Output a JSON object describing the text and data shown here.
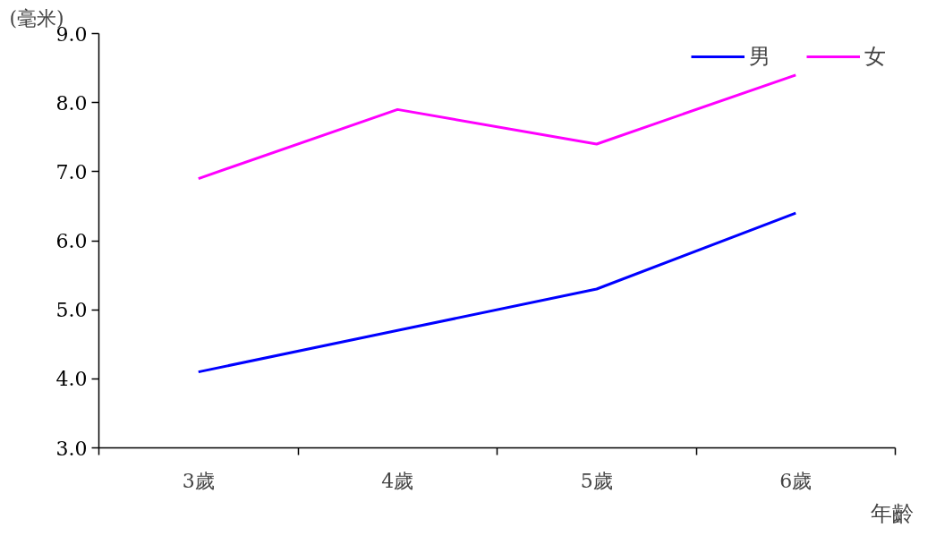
{
  "chart_data": {
    "type": "line",
    "ylabel": "(毫米)",
    "xlabel": "年齡",
    "categories": [
      "3歲",
      "4歲",
      "5歲",
      "6歲"
    ],
    "series": [
      {
        "name": "男",
        "color": "#0000ff",
        "values": [
          4.1,
          4.7,
          5.3,
          6.4
        ]
      },
      {
        "name": "女",
        "color": "#ff00ff",
        "values": [
          6.9,
          7.9,
          7.4,
          8.4
        ]
      }
    ],
    "ylim": [
      3,
      9
    ],
    "yticks": [
      {
        "value": 3,
        "label": "3.0"
      },
      {
        "value": 4,
        "label": "4.0"
      },
      {
        "value": 5,
        "label": "5.0"
      },
      {
        "value": 6,
        "label": "6.0"
      },
      {
        "value": 7,
        "label": "7.0"
      },
      {
        "value": 8,
        "label": "8.0"
      },
      {
        "value": 9,
        "label": "9.0"
      }
    ],
    "grid": false,
    "legend": "top right",
    "line_style": "solid",
    "marker": "none"
  }
}
